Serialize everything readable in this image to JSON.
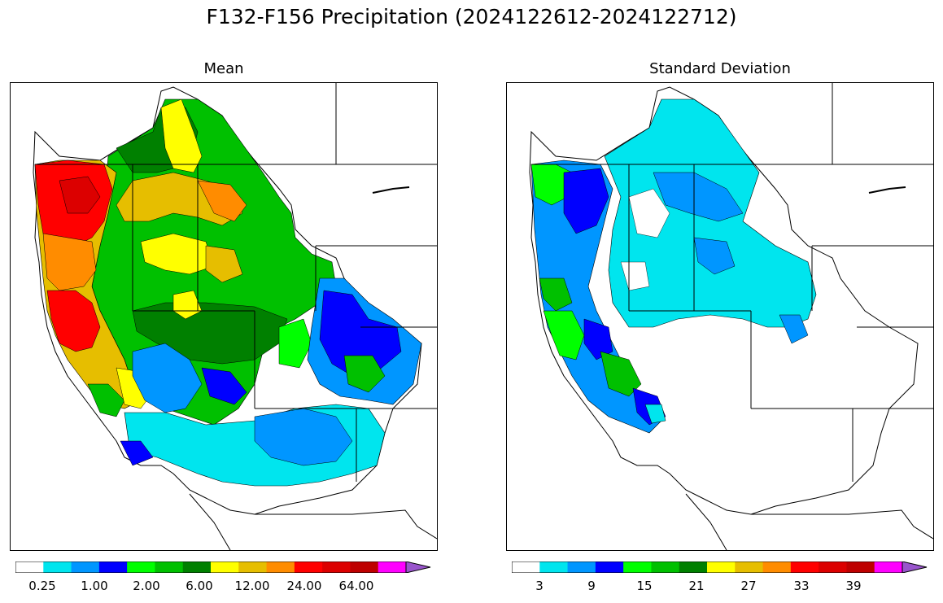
{
  "title": "F132-F156 Precipitation (2024122612-2024122712)",
  "panels": [
    {
      "id": "mean",
      "title": "Mean",
      "colorbar_colors": [
        "#ffffff",
        "#00e5ee",
        "#0096ff",
        "#0000ff",
        "#00ff00",
        "#00c000",
        "#008000",
        "#ffff00",
        "#e6be00",
        "#ff8c00",
        "#ff0000",
        "#dc0000",
        "#be0000",
        "#ff00ff",
        "#9955cc"
      ],
      "colorbar_ticks": [
        "0.25",
        "1.00",
        "2.00",
        "6.00",
        "12.00",
        "24.00",
        "64.00"
      ]
    },
    {
      "id": "stddev",
      "title": "Standard Deviation",
      "colorbar_colors": [
        "#ffffff",
        "#00e5ee",
        "#0096ff",
        "#0000ff",
        "#00ff00",
        "#00c000",
        "#008000",
        "#ffff00",
        "#e6be00",
        "#ff8c00",
        "#ff0000",
        "#dc0000",
        "#be0000",
        "#ff00ff",
        "#9955cc"
      ],
      "colorbar_ticks": [
        "3",
        "9",
        "15",
        "21",
        "27",
        "33",
        "39"
      ]
    }
  ]
}
